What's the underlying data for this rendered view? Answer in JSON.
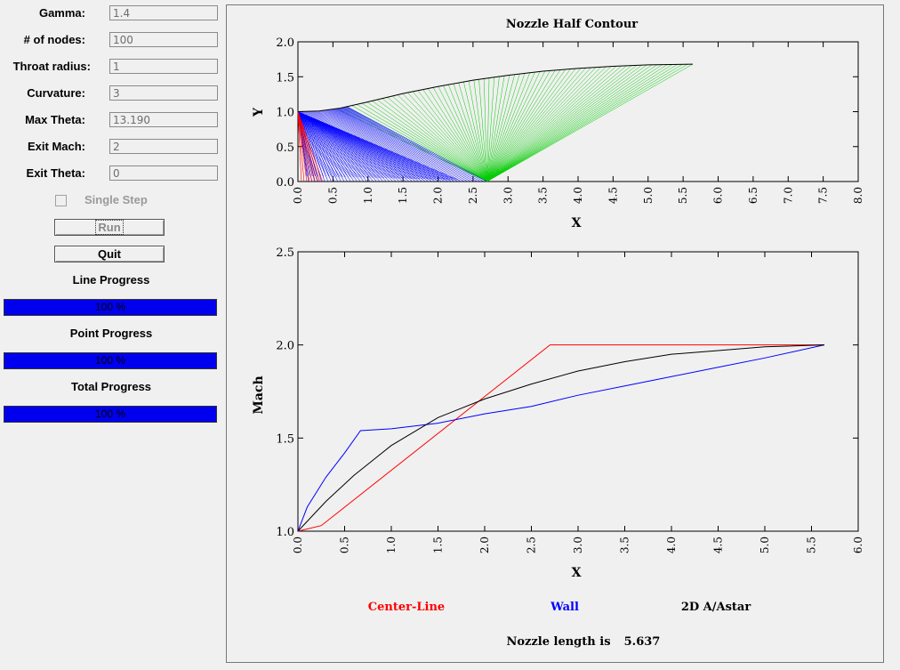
{
  "inputs": [
    {
      "label": "Gamma:",
      "value": "1.4"
    },
    {
      "label": "# of nodes:",
      "value": "100"
    },
    {
      "label": "Throat radius:",
      "value": "1"
    },
    {
      "label": "Curvature:",
      "value": "3"
    },
    {
      "label": "Max Theta:",
      "value": "13.190"
    },
    {
      "label": "Exit Mach:",
      "value": "2"
    },
    {
      "label": "Exit Theta:",
      "value": "0"
    }
  ],
  "single_step_label": "Single Step",
  "run_label": "Run",
  "quit_label": "Quit",
  "progress": [
    {
      "label": "Line Progress",
      "text": "100 %",
      "fraction": 1.0
    },
    {
      "label": "Point Progress",
      "text": "100 %",
      "fraction": 1.0
    },
    {
      "label": "Total Progress",
      "text": "100 %",
      "fraction": 1.0
    }
  ],
  "colors": {
    "centerline": "#ff0000",
    "wall": "#0000ff",
    "area_ratio": "#000000",
    "char_green": "#00cc00",
    "char_blue": "#0000ff",
    "progress_fill": "#0000ee"
  },
  "legend": {
    "centerline": "Center-Line",
    "wall": "Wall",
    "area_ratio": "2D A/Astar"
  },
  "nozzle_length_label": "Nozzle length is",
  "nozzle_length_value": "5.637",
  "chart_data": [
    {
      "type": "line",
      "title": "Nozzle Half Contour",
      "xlabel": "X",
      "ylabel": "Y",
      "xlim": [
        0,
        8
      ],
      "ylim": [
        0,
        2
      ],
      "xticks": [
        "0.0",
        "0.5",
        "1.0",
        "1.5",
        "2.0",
        "2.5",
        "3.0",
        "3.5",
        "4.0",
        "4.5",
        "5.0",
        "5.5",
        "6.0",
        "6.5",
        "7.0",
        "7.5",
        "8.0"
      ],
      "yticks": [
        "0.0",
        "0.5",
        "1.0",
        "1.5",
        "2.0"
      ],
      "series": [
        {
          "x": [
            0,
            0.3,
            0.6,
            1.0,
            1.5,
            2.0,
            2.5,
            3.0,
            3.5,
            4.0,
            4.5,
            5.0,
            5.637
          ],
          "y": [
            1.0,
            1.01,
            1.05,
            1.14,
            1.26,
            1.36,
            1.45,
            1.52,
            1.58,
            1.62,
            1.65,
            1.67,
            1.68
          ]
        }
      ],
      "char_wall_end_x": 0.7,
      "char_axis_end_x": 2.7
    },
    {
      "type": "line",
      "xlabel": "X",
      "ylabel": "Mach",
      "xlim": [
        0,
        6
      ],
      "ylim": [
        1,
        2.5
      ],
      "xticks": [
        "0.0",
        "0.5",
        "1.0",
        "1.5",
        "2.0",
        "2.5",
        "3.0",
        "3.5",
        "4.0",
        "4.5",
        "5.0",
        "5.5",
        "6.0"
      ],
      "yticks": [
        "1.0",
        "1.5",
        "2.0",
        "2.5"
      ],
      "series": [
        {
          "name": "Center-Line",
          "x": [
            0,
            0.25,
            2.7,
            5.637
          ],
          "y": [
            1.0,
            1.03,
            2.0,
            2.0
          ]
        },
        {
          "name": "Wall",
          "x": [
            0,
            0.1,
            0.3,
            0.5,
            0.67,
            1.0,
            1.5,
            2.0,
            2.5,
            3.0,
            3.5,
            4.0,
            4.5,
            5.0,
            5.637
          ],
          "y": [
            1.0,
            1.13,
            1.29,
            1.42,
            1.54,
            1.55,
            1.58,
            1.63,
            1.67,
            1.73,
            1.78,
            1.83,
            1.88,
            1.93,
            2.0
          ]
        },
        {
          "name": "2D A/Astar",
          "x": [
            0,
            0.3,
            0.6,
            1.0,
            1.5,
            2.0,
            2.5,
            3.0,
            3.5,
            4.0,
            4.5,
            5.0,
            5.637
          ],
          "y": [
            1.0,
            1.16,
            1.3,
            1.46,
            1.61,
            1.71,
            1.79,
            1.86,
            1.91,
            1.95,
            1.97,
            1.99,
            2.0
          ]
        }
      ]
    }
  ]
}
